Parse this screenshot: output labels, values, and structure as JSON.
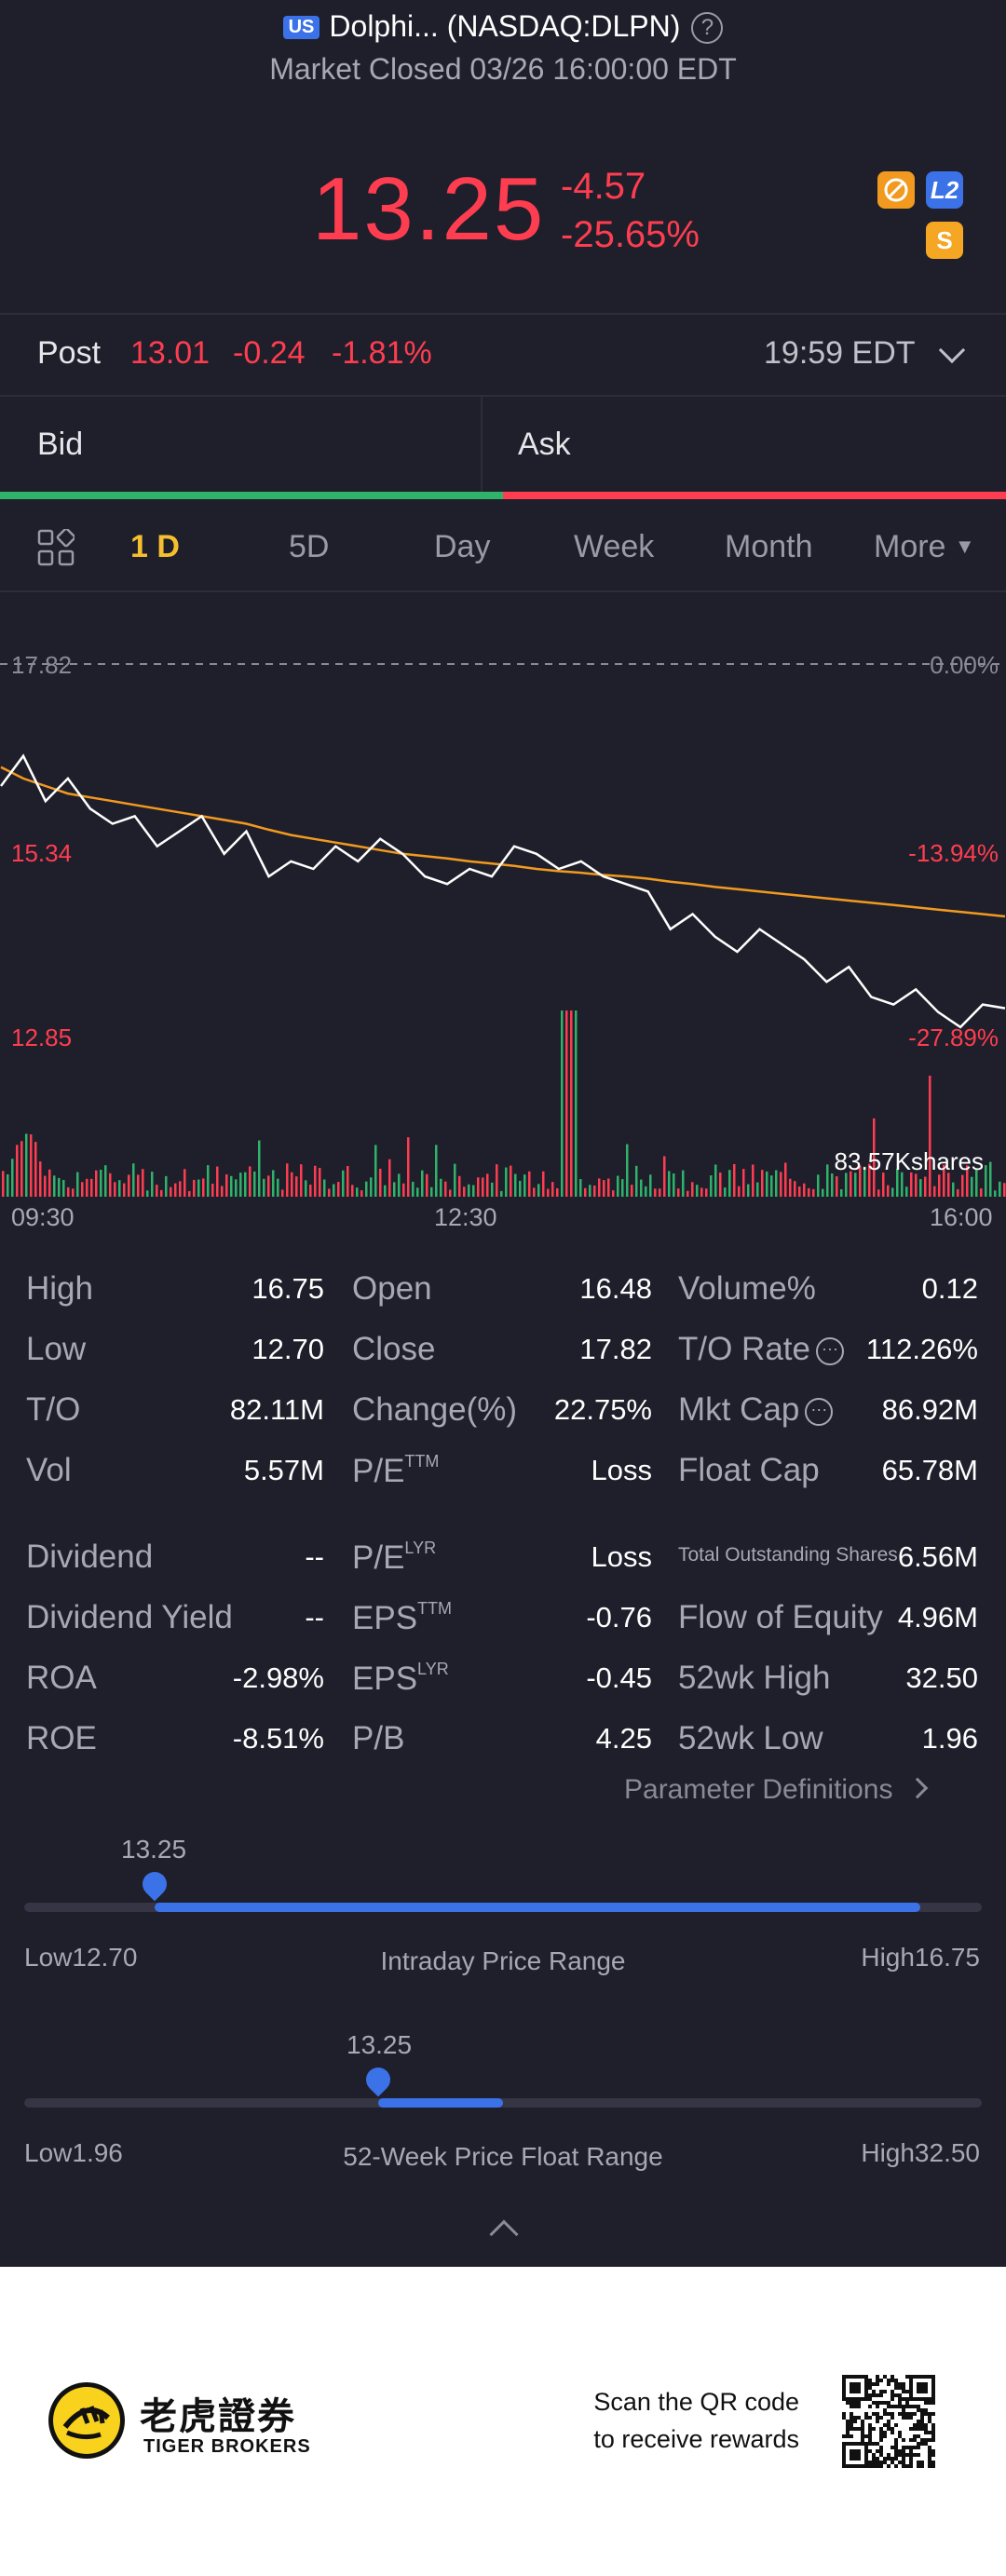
{
  "header": {
    "market_badge": "US",
    "title": "Dolphi... (NASDAQ:DLPN)",
    "status": "Market Closed 03/26 16:00:00 EDT"
  },
  "quote": {
    "price": "13.25",
    "change": "-4.57",
    "change_pct": "-25.65%",
    "badge_l2": "L2",
    "badge_s": "S"
  },
  "post": {
    "label": "Post",
    "price": "13.01",
    "change": "-0.24",
    "change_pct": "-1.81%",
    "time": "19:59 EDT"
  },
  "order_book": {
    "bid_label": "Bid",
    "ask_label": "Ask"
  },
  "tabs": [
    "1 D",
    "5D",
    "Day",
    "Week",
    "Month",
    "More"
  ],
  "chart_data": {
    "type": "line",
    "prev_close": 17.82,
    "y_labels": {
      "top": "17.82",
      "mid": "15.34",
      "bottom": "12.85",
      "top_pct": "0.00%",
      "mid_pct": "-13.94%",
      "bottom_pct": "-27.89%"
    },
    "ylim": [
      12.85,
      17.82
    ],
    "x_labels": [
      "09:30",
      "12:30",
      "16:00"
    ],
    "volume_label": "83.57Kshares",
    "series": [
      {
        "name": "Price",
        "values": [
          16.2,
          16.6,
          16.0,
          16.3,
          15.9,
          15.7,
          15.8,
          15.4,
          15.6,
          15.8,
          15.3,
          15.6,
          15.0,
          15.2,
          15.1,
          15.4,
          15.2,
          15.5,
          15.3,
          15.0,
          14.9,
          15.1,
          15.0,
          15.4,
          15.3,
          15.1,
          15.2,
          15.0,
          14.9,
          14.8,
          14.3,
          14.5,
          14.2,
          14.0,
          14.3,
          14.1,
          13.9,
          13.6,
          13.8,
          13.4,
          13.3,
          13.5,
          13.2,
          13.0,
          13.3,
          13.25
        ]
      },
      {
        "name": "Avg",
        "values": [
          16.45,
          16.3,
          16.2,
          16.1,
          16.05,
          16.0,
          15.95,
          15.9,
          15.85,
          15.8,
          15.75,
          15.7,
          15.62,
          15.55,
          15.5,
          15.45,
          15.4,
          15.35,
          15.3,
          15.27,
          15.24,
          15.2,
          15.17,
          15.14,
          15.1,
          15.07,
          15.05,
          15.02,
          15.0,
          14.97,
          14.93,
          14.9,
          14.86,
          14.83,
          14.8,
          14.77,
          14.74,
          14.71,
          14.68,
          14.65,
          14.62,
          14.59,
          14.56,
          14.53,
          14.5,
          14.47
        ]
      }
    ]
  },
  "stats": {
    "col1": [
      {
        "label": "High",
        "value": "16.75"
      },
      {
        "label": "Low",
        "value": "12.70"
      },
      {
        "label": "T/O",
        "value": "82.11M"
      },
      {
        "label": "Vol",
        "value": "5.57M"
      },
      {
        "label": "Dividend",
        "value": "--"
      },
      {
        "label": "Dividend Yield",
        "value": "--"
      },
      {
        "label": "ROA",
        "value": "-2.98%"
      },
      {
        "label": "ROE",
        "value": "-8.51%"
      }
    ],
    "col2": [
      {
        "label": "Open",
        "value": "16.48"
      },
      {
        "label": "Close",
        "value": "17.82"
      },
      {
        "label": "Change(%)",
        "value": "22.75%"
      },
      {
        "label": "P/E",
        "sup": "TTM",
        "value": "Loss"
      },
      {
        "label": "P/E",
        "sup": "LYR",
        "value": "Loss"
      },
      {
        "label": "EPS",
        "sup": "TTM",
        "value": "-0.76"
      },
      {
        "label": "EPS",
        "sup": "LYR",
        "value": "-0.45"
      },
      {
        "label": "P/B",
        "value": "4.25"
      }
    ],
    "col3": [
      {
        "label": "Volume%",
        "value": "0.12"
      },
      {
        "label": "T/O Rate",
        "value": "112.26%"
      },
      {
        "label": "Mkt Cap",
        "value": "86.92M"
      },
      {
        "label": "Float Cap",
        "value": "65.78M"
      },
      {
        "label": "Total Outstanding Shares",
        "value": "6.56M"
      },
      {
        "label": "Flow of Equity",
        "value": "4.96M"
      },
      {
        "label": "52wk High",
        "value": "32.50"
      },
      {
        "label": "52wk Low",
        "value": "1.96"
      }
    ],
    "definitions_link": "Parameter Definitions"
  },
  "ranges": {
    "intraday": {
      "label": "Intraday Price Range",
      "low": "Low12.70",
      "high": "High16.75",
      "current": "13.25",
      "low_val": 12.7,
      "high_val": 16.75,
      "cur_val": 13.25
    },
    "week52": {
      "label": "52-Week Price Float Range",
      "low": "Low1.96",
      "high": "High32.50",
      "current": "13.25",
      "low_val": 1.96,
      "high_val": 32.5,
      "cur_val": 13.25
    }
  },
  "footer": {
    "brand_cn": "老虎證券",
    "brand_en": "TIGER BROKERS",
    "cta_line1": "Scan the QR code",
    "cta_line2": "to receive rewards"
  },
  "colors": {
    "up": "#2fb36b",
    "down": "#ff3d50",
    "accent": "#3b72e8",
    "tab_active": "#f5c02f",
    "avg_line": "#f29a1f"
  }
}
